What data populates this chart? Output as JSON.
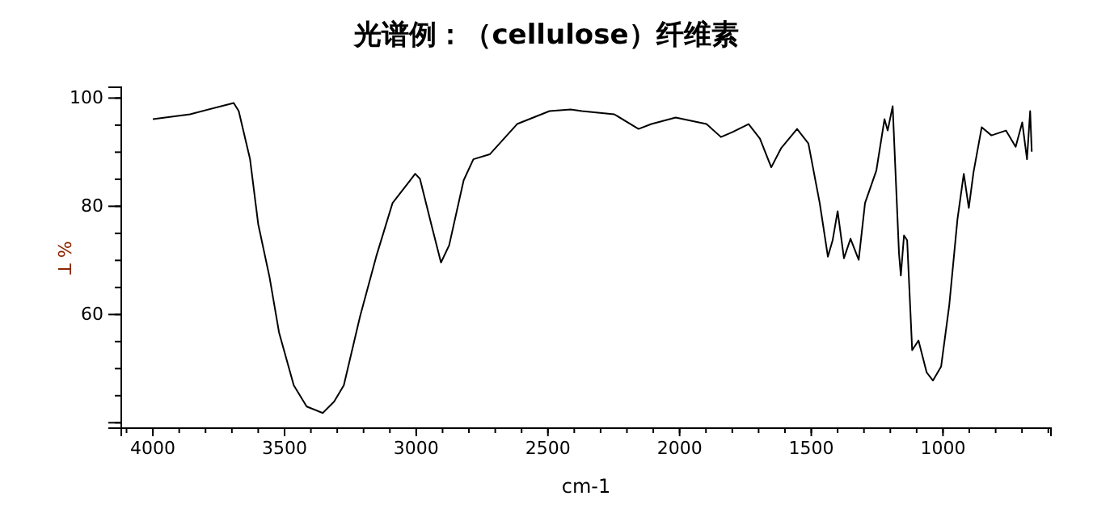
{
  "chart_data": {
    "type": "line",
    "title": "光谱例：（cellulose）纤维素",
    "xlabel": "cm-1",
    "ylabel": "% T",
    "xlim": [
      4120,
      590
    ],
    "xticks": [
      4000,
      3500,
      3000,
      2500,
      2000,
      1500,
      1000
    ],
    "ylim": [
      39,
      102
    ],
    "yticks": [
      {
        "value": 40,
        "label": null
      },
      60,
      80,
      100
    ],
    "grid": false,
    "marker": "none",
    "line_style": "solid",
    "series": [
      {
        "color": "#000000",
        "x": [
          4000,
          3859,
          3693,
          3674,
          3631,
          3600,
          3557,
          3521,
          3465,
          3416,
          3355,
          3312,
          3275,
          3213,
          3152,
          3090,
          3004,
          2986,
          2943,
          2906,
          2875,
          2820,
          2783,
          2721,
          2617,
          2494,
          2414,
          2371,
          2248,
          2156,
          2107,
          2015,
          1898,
          1843,
          1800,
          1738,
          1695,
          1652,
          1615,
          1554,
          1511,
          1468,
          1437,
          1419,
          1400,
          1376,
          1351,
          1320,
          1296,
          1253,
          1222,
          1210,
          1191,
          1167,
          1160,
          1148,
          1136,
          1117,
          1093,
          1062,
          1038,
          1007,
          976,
          945,
          921,
          902,
          884,
          853,
          816,
          761,
          724,
          699,
          681,
          669,
          663
        ],
        "values": [
          96.1,
          97.0,
          99.1,
          97.6,
          88.7,
          76.7,
          66.9,
          56.7,
          46.9,
          43.0,
          41.8,
          43.9,
          46.9,
          59.7,
          70.7,
          80.6,
          86.0,
          85.1,
          76.7,
          69.6,
          72.8,
          84.8,
          88.7,
          89.6,
          95.2,
          97.6,
          97.9,
          97.6,
          97.0,
          94.3,
          95.2,
          96.4,
          95.2,
          92.8,
          93.7,
          95.2,
          92.5,
          87.2,
          90.7,
          94.3,
          91.6,
          80.6,
          70.7,
          73.7,
          79.1,
          70.4,
          74.0,
          70.1,
          80.6,
          86.6,
          96.1,
          94.0,
          98.5,
          71.3,
          67.2,
          74.6,
          73.7,
          53.4,
          55.2,
          49.3,
          47.8,
          50.4,
          61.8,
          77.6,
          86.0,
          79.7,
          86.3,
          94.6,
          93.1,
          94.0,
          91.0,
          95.5,
          88.7,
          97.6,
          90.1
        ]
      }
    ]
  }
}
